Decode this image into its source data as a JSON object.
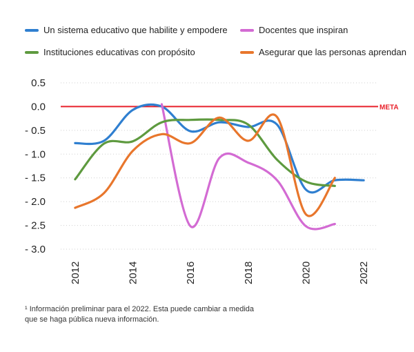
{
  "chart_data": {
    "type": "line",
    "x_ticks": [
      "2012",
      "2014",
      "2016",
      "2018",
      "2020",
      "2022"
    ],
    "y_ticks": [
      "0.5",
      "0.0",
      "- 0.5",
      "- 1.0",
      "- 1.5",
      "- 2.0",
      "- 2.5",
      "- 3.0"
    ],
    "ylim": [
      -3.0,
      0.5
    ],
    "xlim": [
      2011.5,
      2022.5
    ],
    "grid": "horizontal-dotted",
    "legend_position": "top",
    "meta": {
      "label": "META",
      "value": 0.0,
      "color": "#e8202a"
    },
    "series": [
      {
        "name": "Un sistema educativo que habilite y empodere",
        "color": "#2f7fd0",
        "x": [
          2012,
          2013,
          2014,
          2015,
          2016,
          2017,
          2018,
          2019,
          2020,
          2021,
          2022
        ],
        "y": [
          -0.77,
          -0.72,
          -0.07,
          0.0,
          -0.52,
          -0.33,
          -0.43,
          -0.38,
          -1.75,
          -1.55,
          -1.55
        ]
      },
      {
        "name": "Docentes que inspiran",
        "color": "#d36bd3",
        "x": [
          2015,
          2016,
          2017,
          2018,
          2019,
          2020,
          2021
        ],
        "y": [
          0.05,
          -2.52,
          -1.08,
          -1.18,
          -1.55,
          -2.52,
          -2.47
        ]
      },
      {
        "name": "Instituciones educativas con propósito",
        "color": "#5e9a3f",
        "x": [
          2012,
          2013,
          2014,
          2015,
          2016,
          2017,
          2018,
          2019,
          2020,
          2021
        ],
        "y": [
          -1.53,
          -0.78,
          -0.73,
          -0.33,
          -0.28,
          -0.28,
          -0.38,
          -1.12,
          -1.58,
          -1.67
        ]
      },
      {
        "name": "Asegurar que las personas aprendan",
        "color": "#e8762c",
        "x": [
          2012,
          2013,
          2014,
          2015,
          2016,
          2017,
          2018,
          2019,
          2020,
          2021
        ],
        "y": [
          -2.13,
          -1.82,
          -0.93,
          -0.58,
          -0.77,
          -0.23,
          -0.72,
          -0.22,
          -2.27,
          -1.5
        ]
      }
    ],
    "footnote": [
      "¹ Información preliminar para el 2022. Esta puede cambiar a medida",
      "que se haga pública nueva información."
    ]
  }
}
